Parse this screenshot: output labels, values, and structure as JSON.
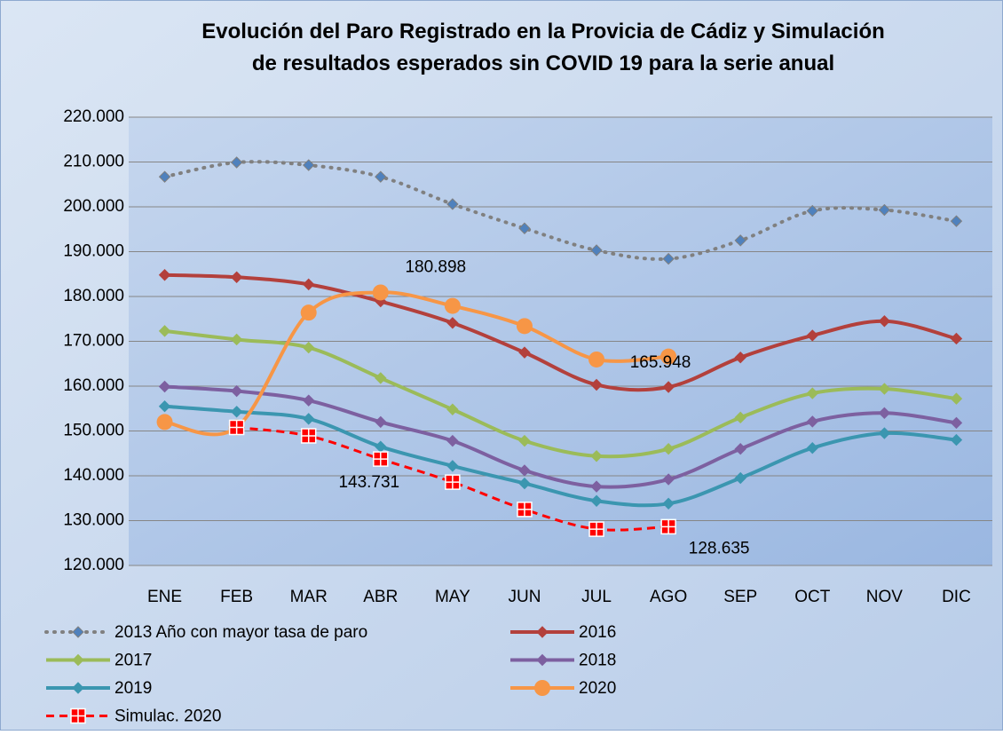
{
  "chart_data": {
    "type": "line",
    "title": "Evolución del Paro Registrado en la Provicia de Cádiz y Simulación de resultados esperados sin COVID 19 para la serie anual",
    "categories": [
      "ENE",
      "FEB",
      "MAR",
      "ABR",
      "MAY",
      "JUN",
      "JUL",
      "AGO",
      "SEP",
      "OCT",
      "NOV",
      "DIC"
    ],
    "ylim": [
      120000,
      220000
    ],
    "yticks": [
      {
        "value": 120000,
        "label": "120.000"
      },
      {
        "value": 130000,
        "label": "130.000"
      },
      {
        "value": 140000,
        "label": "140.000"
      },
      {
        "value": 150000,
        "label": "150.000"
      },
      {
        "value": 160000,
        "label": "160.000"
      },
      {
        "value": 170000,
        "label": "170.000"
      },
      {
        "value": 180000,
        "label": "180.000"
      },
      {
        "value": 190000,
        "label": "190.000"
      },
      {
        "value": 200000,
        "label": "200.000"
      },
      {
        "value": 210000,
        "label": "210.000"
      },
      {
        "value": 220000,
        "label": "220.000"
      }
    ],
    "grid": true,
    "series": [
      {
        "name": "2013 Año con mayor tasa de paro",
        "color": "#808080",
        "marker_color": "#4f81bd",
        "marker": "diamond",
        "dash": "dot",
        "values": [
          206700,
          209900,
          209300,
          206700,
          200600,
          195200,
          190300,
          188400,
          192500,
          199100,
          199300,
          196800
        ]
      },
      {
        "name": "2016",
        "color": "#b3403c",
        "marker": "diamond",
        "values": [
          184800,
          184300,
          182700,
          178900,
          174100,
          167500,
          160300,
          159800,
          166400,
          171300,
          174500,
          170600
        ]
      },
      {
        "name": "2017",
        "color": "#9bbb59",
        "marker": "diamond",
        "values": [
          172300,
          170400,
          168600,
          161800,
          154800,
          147800,
          144400,
          146000,
          153000,
          158400,
          159400,
          157200
        ]
      },
      {
        "name": "2018",
        "color": "#7d60a0",
        "marker": "diamond",
        "values": [
          159900,
          158900,
          156800,
          152000,
          147800,
          141200,
          137600,
          139200,
          146000,
          152100,
          154000,
          151800
        ]
      },
      {
        "name": "2019",
        "color": "#3b96b0",
        "marker": "diamond",
        "values": [
          155500,
          154300,
          152700,
          146500,
          142200,
          138300,
          134400,
          133800,
          139500,
          146200,
          149500,
          148000
        ]
      },
      {
        "name": "2020",
        "color": "#f79646",
        "marker": "circle",
        "values": [
          152000,
          150800,
          176400,
          180898,
          177900,
          173400,
          165948,
          166600,
          null,
          null,
          null,
          null
        ],
        "value_labels": [
          null,
          null,
          null,
          "180.898",
          null,
          null,
          "165.948",
          null,
          null,
          null,
          null,
          null
        ]
      },
      {
        "name": "Simulac. 2020",
        "color": "#ff0000",
        "marker": "cross",
        "dash": "dash",
        "values": [
          null,
          150800,
          148900,
          143731,
          138600,
          132500,
          128100,
          128635,
          null,
          null,
          null,
          null
        ],
        "value_labels": [
          null,
          null,
          null,
          "143.731",
          null,
          null,
          null,
          "128.635",
          null,
          null,
          null,
          null
        ]
      }
    ]
  }
}
